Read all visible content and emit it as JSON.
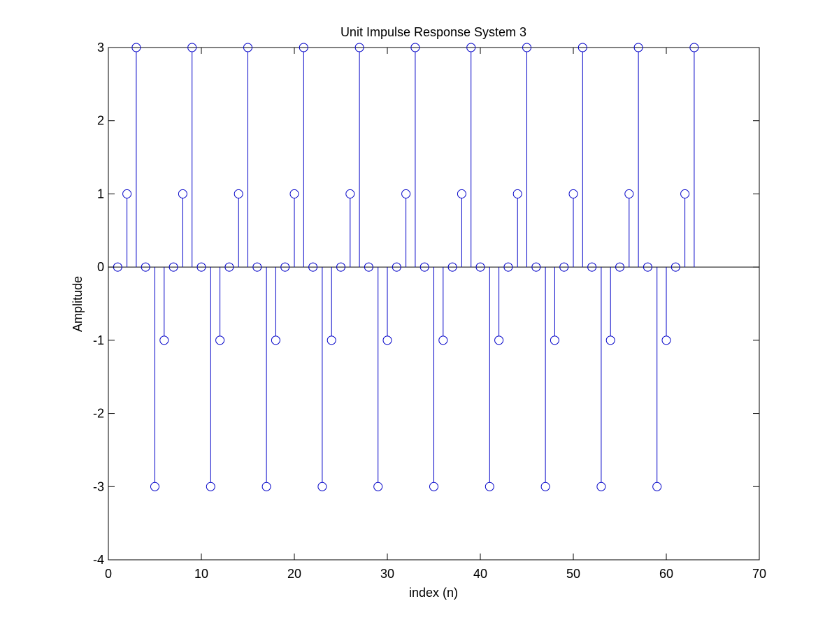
{
  "chart_data": {
    "type": "stem",
    "title": "Unit Impulse Response System 3",
    "xlabel": "index (n)",
    "ylabel": "Amplitude",
    "xlim": [
      0,
      70
    ],
    "ylim": [
      -4,
      3
    ],
    "xticks": [
      0,
      10,
      20,
      30,
      40,
      50,
      60,
      70
    ],
    "yticks": [
      -4,
      -3,
      -2,
      -1,
      0,
      1,
      2,
      3
    ],
    "grid": false,
    "legend": "none",
    "marker": "circle",
    "color": "#0000c8",
    "series": [
      {
        "x": [
          1,
          2,
          3,
          4,
          5,
          6,
          7,
          8,
          9,
          10,
          11,
          12,
          13,
          14,
          15,
          16,
          17,
          18,
          19,
          20,
          21,
          22,
          23,
          24,
          25,
          26,
          27,
          28,
          29,
          30,
          31,
          32,
          33,
          34,
          35,
          36,
          37,
          38,
          39,
          40,
          41,
          42,
          43,
          44,
          45,
          46,
          47,
          48,
          49,
          50,
          51,
          52,
          53,
          54,
          55,
          56,
          57,
          58,
          59,
          60,
          61,
          62,
          63
        ],
        "y": [
          0,
          1,
          3,
          0,
          -3,
          -1,
          0,
          1,
          3,
          0,
          -3,
          -1,
          0,
          1,
          3,
          0,
          -3,
          -1,
          0,
          1,
          3,
          0,
          -3,
          -1,
          0,
          1,
          3,
          0,
          -3,
          -1,
          0,
          1,
          3,
          0,
          -3,
          -1,
          0,
          1,
          3,
          0,
          -3,
          -1,
          0,
          1,
          3,
          0,
          -3,
          -1,
          0,
          1,
          3,
          0,
          -3,
          -1,
          0,
          1,
          3,
          0,
          -3,
          -1,
          0,
          1,
          3
        ]
      }
    ]
  }
}
